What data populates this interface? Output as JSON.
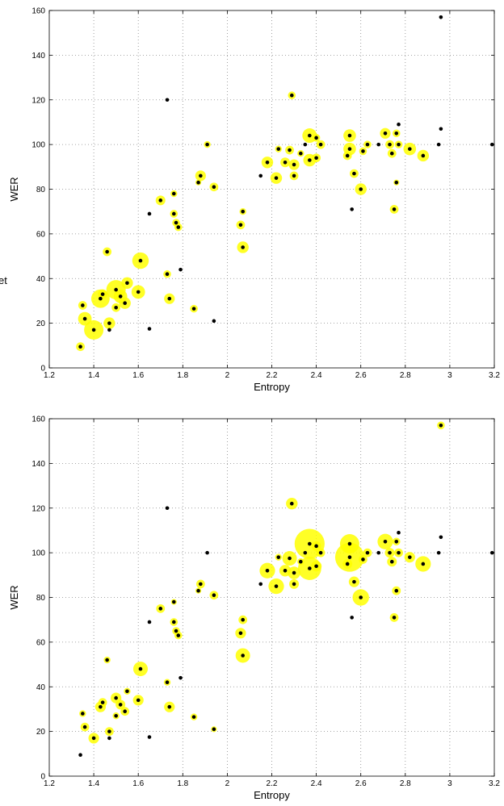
{
  "stray_text": "et",
  "chart_data": [
    {
      "type": "scatter",
      "title": "",
      "xlabel": "Entropy",
      "ylabel": "WER",
      "xlim": [
        1.2,
        3.2
      ],
      "ylim": [
        0,
        160
      ],
      "xticks": [
        "1.2",
        "1.4",
        "1.6",
        "1.8",
        "2",
        "2.2",
        "2.4",
        "2.6",
        "2.8",
        "3",
        "3.2"
      ],
      "yticks": [
        "0",
        "20",
        "40",
        "60",
        "80",
        "100",
        "120",
        "140",
        "160"
      ],
      "grid": true,
      "points": [
        {
          "x": 1.34,
          "y": 9.5,
          "s": 0.45
        },
        {
          "x": 1.35,
          "y": 28,
          "s": 0.45
        },
        {
          "x": 1.36,
          "y": 22,
          "s": 0.7
        },
        {
          "x": 1.4,
          "y": 17,
          "s": 1.0
        },
        {
          "x": 1.43,
          "y": 31,
          "s": 0.95
        },
        {
          "x": 1.44,
          "y": 33,
          "s": 0.5
        },
        {
          "x": 1.46,
          "y": 52,
          "s": 0.45
        },
        {
          "x": 1.47,
          "y": 20,
          "s": 0.6
        },
        {
          "x": 1.47,
          "y": 17,
          "s": 0.2
        },
        {
          "x": 1.5,
          "y": 35,
          "s": 1.0
        },
        {
          "x": 1.5,
          "y": 27,
          "s": 0.45
        },
        {
          "x": 1.52,
          "y": 32,
          "s": 0.7
        },
        {
          "x": 1.54,
          "y": 29,
          "s": 0.6
        },
        {
          "x": 1.55,
          "y": 38,
          "s": 0.6
        },
        {
          "x": 1.6,
          "y": 34,
          "s": 0.7
        },
        {
          "x": 1.61,
          "y": 48,
          "s": 0.85
        },
        {
          "x": 1.65,
          "y": 17.5,
          "s": 0.2
        },
        {
          "x": 1.65,
          "y": 69,
          "s": 0.2
        },
        {
          "x": 1.7,
          "y": 75,
          "s": 0.5
        },
        {
          "x": 1.73,
          "y": 120,
          "s": 0.2
        },
        {
          "x": 1.73,
          "y": 42,
          "s": 0.4
        },
        {
          "x": 1.74,
          "y": 31,
          "s": 0.55
        },
        {
          "x": 1.76,
          "y": 78,
          "s": 0.35
        },
        {
          "x": 1.76,
          "y": 69,
          "s": 0.4
        },
        {
          "x": 1.77,
          "y": 65,
          "s": 0.4
        },
        {
          "x": 1.78,
          "y": 63,
          "s": 0.4
        },
        {
          "x": 1.79,
          "y": 44,
          "s": 0.2
        },
        {
          "x": 1.85,
          "y": 26.5,
          "s": 0.4
        },
        {
          "x": 1.87,
          "y": 83,
          "s": 0.3
        },
        {
          "x": 1.88,
          "y": 86,
          "s": 0.55
        },
        {
          "x": 1.91,
          "y": 100,
          "s": 0.35
        },
        {
          "x": 1.94,
          "y": 81,
          "s": 0.45
        },
        {
          "x": 1.94,
          "y": 21,
          "s": 0.2
        },
        {
          "x": 2.06,
          "y": 64,
          "s": 0.45
        },
        {
          "x": 2.07,
          "y": 70,
          "s": 0.35
        },
        {
          "x": 2.07,
          "y": 54,
          "s": 0.6
        },
        {
          "x": 2.15,
          "y": 86,
          "s": 0.2
        },
        {
          "x": 2.18,
          "y": 92,
          "s": 0.6
        },
        {
          "x": 2.22,
          "y": 85,
          "s": 0.6
        },
        {
          "x": 2.23,
          "y": 98,
          "s": 0.35
        },
        {
          "x": 2.26,
          "y": 92,
          "s": 0.5
        },
        {
          "x": 2.28,
          "y": 97.5,
          "s": 0.45
        },
        {
          "x": 2.29,
          "y": 122,
          "s": 0.4
        },
        {
          "x": 2.3,
          "y": 91,
          "s": 0.55
        },
        {
          "x": 2.3,
          "y": 86,
          "s": 0.45
        },
        {
          "x": 2.33,
          "y": 96,
          "s": 0.35
        },
        {
          "x": 2.35,
          "y": 100,
          "s": 0.2
        },
        {
          "x": 2.37,
          "y": 104,
          "s": 0.75
        },
        {
          "x": 2.37,
          "y": 93,
          "s": 0.65
        },
        {
          "x": 2.4,
          "y": 94,
          "s": 0.45
        },
        {
          "x": 2.4,
          "y": 103,
          "s": 0.4
        },
        {
          "x": 2.42,
          "y": 100,
          "s": 0.45
        },
        {
          "x": 2.54,
          "y": 95,
          "s": 0.45
        },
        {
          "x": 2.55,
          "y": 98,
          "s": 0.65
        },
        {
          "x": 2.55,
          "y": 104,
          "s": 0.65
        },
        {
          "x": 2.56,
          "y": 71,
          "s": 0.2
        },
        {
          "x": 2.57,
          "y": 87,
          "s": 0.45
        },
        {
          "x": 2.6,
          "y": 80,
          "s": 0.6
        },
        {
          "x": 2.61,
          "y": 97,
          "s": 0.4
        },
        {
          "x": 2.63,
          "y": 100,
          "s": 0.4
        },
        {
          "x": 2.68,
          "y": 100,
          "s": 0.2
        },
        {
          "x": 2.71,
          "y": 105,
          "s": 0.55
        },
        {
          "x": 2.73,
          "y": 100,
          "s": 0.45
        },
        {
          "x": 2.74,
          "y": 96,
          "s": 0.45
        },
        {
          "x": 2.75,
          "y": 71,
          "s": 0.45
        },
        {
          "x": 2.76,
          "y": 83,
          "s": 0.3
        },
        {
          "x": 2.76,
          "y": 105,
          "s": 0.4
        },
        {
          "x": 2.77,
          "y": 100,
          "s": 0.4
        },
        {
          "x": 2.77,
          "y": 109,
          "s": 0.2
        },
        {
          "x": 2.82,
          "y": 98,
          "s": 0.65
        },
        {
          "x": 2.88,
          "y": 95,
          "s": 0.6
        },
        {
          "x": 2.95,
          "y": 100,
          "s": 0.2
        },
        {
          "x": 2.96,
          "y": 107,
          "s": 0.2
        },
        {
          "x": 2.96,
          "y": 157,
          "s": 0.2
        },
        {
          "x": 3.19,
          "y": 100,
          "s": 0.2
        }
      ]
    },
    {
      "type": "scatter",
      "title": "",
      "xlabel": "Entropy",
      "ylabel": "WER",
      "xlim": [
        1.2,
        3.2
      ],
      "ylim": [
        0,
        160
      ],
      "xticks": [
        "1.2",
        "1.4",
        "1.6",
        "1.8",
        "2",
        "2.2",
        "2.4",
        "2.6",
        "2.8",
        "3",
        "3.2"
      ],
      "yticks": [
        "0",
        "20",
        "40",
        "60",
        "80",
        "100",
        "120",
        "140",
        "160"
      ],
      "grid": true,
      "points": [
        {
          "x": 1.34,
          "y": 9.5,
          "s": 0.2
        },
        {
          "x": 1.35,
          "y": 28,
          "s": 0.35
        },
        {
          "x": 1.36,
          "y": 22,
          "s": 0.45
        },
        {
          "x": 1.4,
          "y": 17,
          "s": 0.55
        },
        {
          "x": 1.43,
          "y": 31,
          "s": 0.55
        },
        {
          "x": 1.44,
          "y": 33,
          "s": 0.45
        },
        {
          "x": 1.46,
          "y": 52,
          "s": 0.35
        },
        {
          "x": 1.47,
          "y": 20,
          "s": 0.45
        },
        {
          "x": 1.47,
          "y": 17,
          "s": 0.2
        },
        {
          "x": 1.5,
          "y": 35,
          "s": 0.55
        },
        {
          "x": 1.5,
          "y": 27,
          "s": 0.35
        },
        {
          "x": 1.52,
          "y": 32,
          "s": 0.5
        },
        {
          "x": 1.54,
          "y": 29,
          "s": 0.45
        },
        {
          "x": 1.55,
          "y": 38,
          "s": 0.35
        },
        {
          "x": 1.6,
          "y": 34,
          "s": 0.55
        },
        {
          "x": 1.61,
          "y": 48,
          "s": 0.75
        },
        {
          "x": 1.65,
          "y": 17.5,
          "s": 0.2
        },
        {
          "x": 1.65,
          "y": 69,
          "s": 0.2
        },
        {
          "x": 1.7,
          "y": 75,
          "s": 0.45
        },
        {
          "x": 1.73,
          "y": 120,
          "s": 0.2
        },
        {
          "x": 1.73,
          "y": 42,
          "s": 0.35
        },
        {
          "x": 1.74,
          "y": 31,
          "s": 0.55
        },
        {
          "x": 1.76,
          "y": 78,
          "s": 0.3
        },
        {
          "x": 1.76,
          "y": 69,
          "s": 0.4
        },
        {
          "x": 1.77,
          "y": 65,
          "s": 0.4
        },
        {
          "x": 1.78,
          "y": 63,
          "s": 0.4
        },
        {
          "x": 1.79,
          "y": 44,
          "s": 0.2
        },
        {
          "x": 1.85,
          "y": 26.5,
          "s": 0.35
        },
        {
          "x": 1.87,
          "y": 83,
          "s": 0.3
        },
        {
          "x": 1.88,
          "y": 86,
          "s": 0.45
        },
        {
          "x": 1.91,
          "y": 100,
          "s": 0.2
        },
        {
          "x": 1.94,
          "y": 81,
          "s": 0.45
        },
        {
          "x": 1.94,
          "y": 21,
          "s": 0.3
        },
        {
          "x": 2.06,
          "y": 64,
          "s": 0.55
        },
        {
          "x": 2.07,
          "y": 70,
          "s": 0.45
        },
        {
          "x": 2.07,
          "y": 54,
          "s": 0.75
        },
        {
          "x": 2.15,
          "y": 86,
          "s": 0.2
        },
        {
          "x": 2.18,
          "y": 92,
          "s": 0.8
        },
        {
          "x": 2.22,
          "y": 85,
          "s": 0.8
        },
        {
          "x": 2.23,
          "y": 98,
          "s": 0.35
        },
        {
          "x": 2.26,
          "y": 92,
          "s": 0.6
        },
        {
          "x": 2.28,
          "y": 97.5,
          "s": 0.75
        },
        {
          "x": 2.29,
          "y": 122,
          "s": 0.6
        },
        {
          "x": 2.3,
          "y": 91,
          "s": 0.65
        },
        {
          "x": 2.3,
          "y": 86,
          "s": 0.5
        },
        {
          "x": 2.33,
          "y": 96,
          "s": 0.35
        },
        {
          "x": 2.35,
          "y": 100,
          "s": 0.2
        },
        {
          "x": 2.37,
          "y": 104,
          "s": 1.55
        },
        {
          "x": 2.37,
          "y": 93,
          "s": 1.2
        },
        {
          "x": 2.4,
          "y": 94,
          "s": 0.55
        },
        {
          "x": 2.4,
          "y": 103,
          "s": 0.5
        },
        {
          "x": 2.42,
          "y": 100,
          "s": 0.45
        },
        {
          "x": 2.54,
          "y": 95,
          "s": 0.5
        },
        {
          "x": 2.55,
          "y": 98,
          "s": 1.5
        },
        {
          "x": 2.55,
          "y": 104,
          "s": 1.0
        },
        {
          "x": 2.56,
          "y": 71,
          "s": 0.2
        },
        {
          "x": 2.57,
          "y": 87,
          "s": 0.55
        },
        {
          "x": 2.6,
          "y": 80,
          "s": 0.85
        },
        {
          "x": 2.61,
          "y": 97,
          "s": 0.45
        },
        {
          "x": 2.63,
          "y": 100,
          "s": 0.45
        },
        {
          "x": 2.68,
          "y": 100,
          "s": 0.2
        },
        {
          "x": 2.71,
          "y": 105,
          "s": 0.8
        },
        {
          "x": 2.73,
          "y": 100,
          "s": 0.5
        },
        {
          "x": 2.74,
          "y": 96,
          "s": 0.5
        },
        {
          "x": 2.75,
          "y": 71,
          "s": 0.45
        },
        {
          "x": 2.76,
          "y": 83,
          "s": 0.45
        },
        {
          "x": 2.76,
          "y": 105,
          "s": 0.4
        },
        {
          "x": 2.77,
          "y": 100,
          "s": 0.45
        },
        {
          "x": 2.77,
          "y": 109,
          "s": 0.2
        },
        {
          "x": 2.82,
          "y": 98,
          "s": 0.55
        },
        {
          "x": 2.88,
          "y": 95,
          "s": 0.8
        },
        {
          "x": 2.95,
          "y": 100,
          "s": 0.2
        },
        {
          "x": 2.96,
          "y": 107,
          "s": 0.2
        },
        {
          "x": 2.96,
          "y": 157,
          "s": 0.4
        },
        {
          "x": 3.19,
          "y": 100,
          "s": 0.2
        }
      ]
    }
  ]
}
